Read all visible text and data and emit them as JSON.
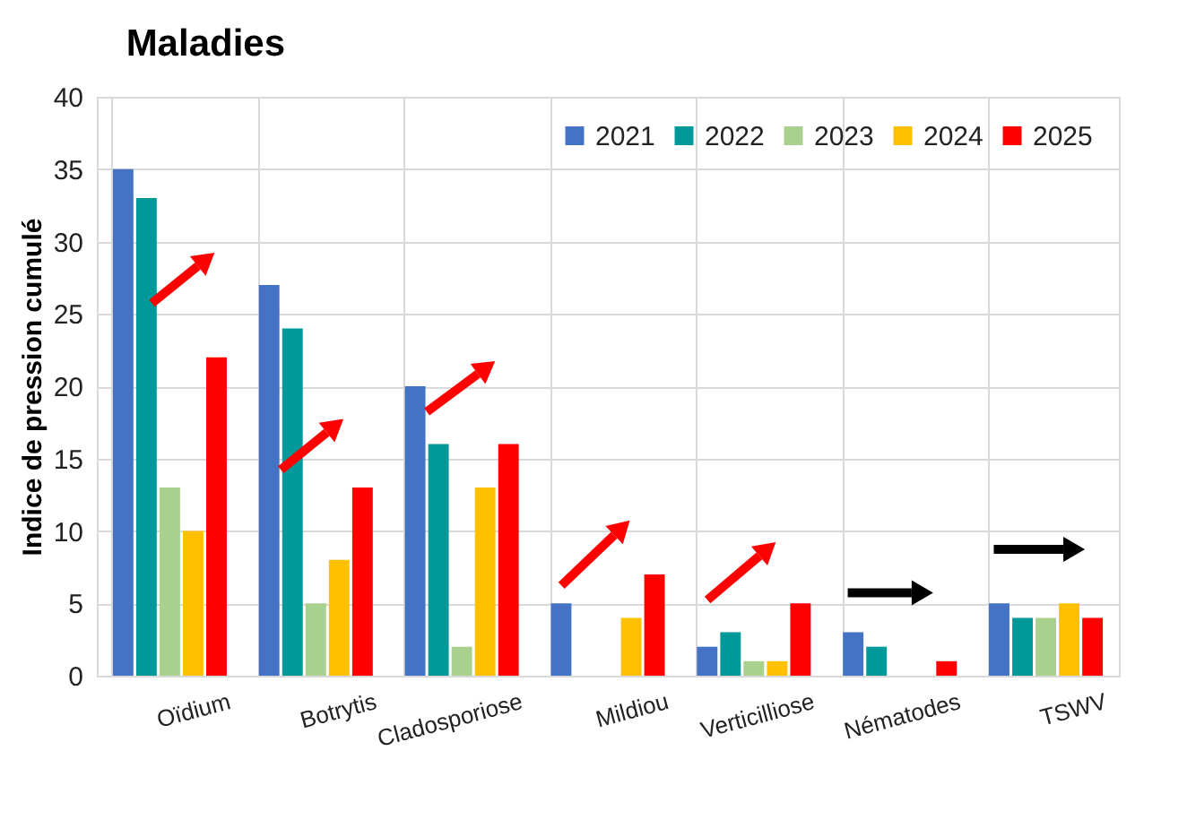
{
  "chart_data": {
    "type": "bar",
    "title": "Maladies",
    "ylabel": "Indice de pression cumulé",
    "categories": [
      "Oïdium",
      "Botrytis",
      "Cladosporiose",
      "Mildiou",
      "Verticilliose",
      "Nématodes",
      "TSWV"
    ],
    "series": [
      {
        "name": "2021",
        "color": "#4472c4",
        "values": [
          35,
          27,
          20,
          5,
          2,
          3,
          5
        ]
      },
      {
        "name": "2022",
        "color": "#009999",
        "values": [
          33,
          24,
          16,
          0,
          3,
          2,
          4
        ]
      },
      {
        "name": "2023",
        "color": "#a9d18e",
        "values": [
          13,
          5,
          2,
          0,
          1,
          0,
          4
        ]
      },
      {
        "name": "2024",
        "color": "#ffc000",
        "values": [
          10,
          8,
          13,
          4,
          1,
          0,
          5
        ]
      },
      {
        "name": "2025",
        "color": "#ff0000",
        "values": [
          22,
          13,
          16,
          7,
          5,
          1,
          4
        ]
      }
    ],
    "ylim": [
      0,
      40
    ],
    "yticks": [
      0,
      5,
      10,
      15,
      20,
      25,
      30,
      35,
      40
    ],
    "grid": true,
    "legend": "top right"
  }
}
